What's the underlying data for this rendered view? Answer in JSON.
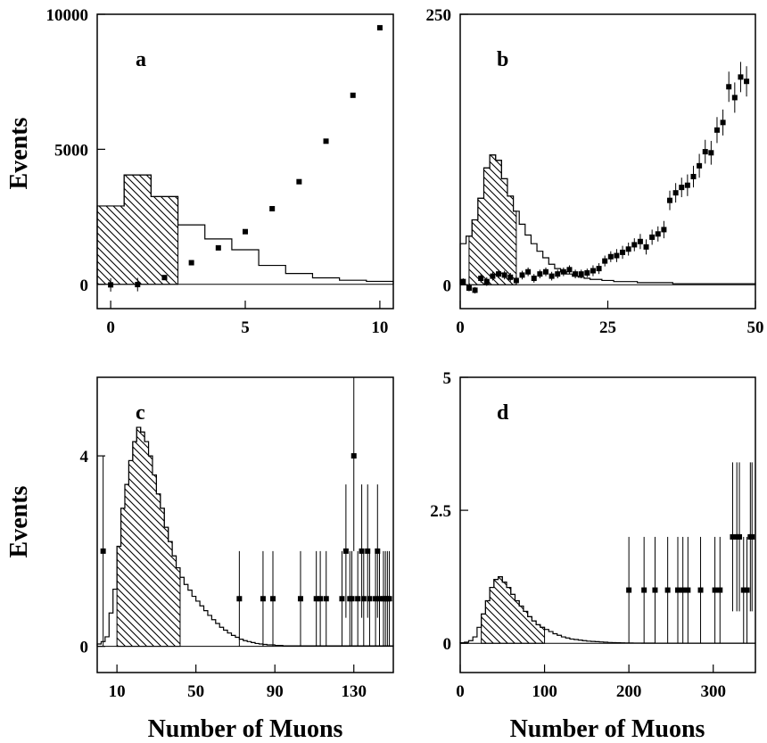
{
  "figure": {
    "ylabel_top": "Events",
    "ylabel_bottom": "Events",
    "xlabel_left": "Number of Muons",
    "xlabel_right": "Number of Muons"
  },
  "chart_data": [
    {
      "panel": "a",
      "type": "histogram",
      "xlim": [
        -0.5,
        10.5
      ],
      "ylim": [
        -900,
        10000
      ],
      "xticks": [
        0,
        5,
        10
      ],
      "xtick_labels": [
        "0",
        "5",
        "10"
      ],
      "yticks": [
        0,
        5000,
        10000
      ],
      "ytick_labels": [
        "0",
        "5000",
        "10000"
      ],
      "hist_edges": [
        -0.5,
        0.5,
        1.5,
        2.5,
        3.5,
        4.5,
        5.5,
        6.5,
        7.5,
        8.5,
        9.5,
        10.5
      ],
      "hist_values": [
        2900,
        4050,
        3250,
        2200,
        1680,
        1280,
        700,
        400,
        240,
        150,
        110
      ],
      "shaded_range": [
        -0.5,
        2.5
      ],
      "points_x": [
        0,
        1,
        2,
        3,
        4,
        5,
        6,
        7,
        8,
        9,
        10
      ],
      "points_y": [
        -20,
        -10,
        250,
        800,
        1350,
        1950,
        2800,
        3800,
        5300,
        7000,
        9500
      ],
      "points_err": [
        250,
        250,
        60,
        0,
        0,
        0,
        0,
        0,
        0,
        0,
        0
      ]
    },
    {
      "panel": "b",
      "type": "histogram",
      "xlim": [
        0,
        50
      ],
      "ylim": [
        -22,
        250
      ],
      "xticks": [
        0,
        25,
        50
      ],
      "xtick_labels": [
        "0",
        "25",
        "50"
      ],
      "yticks": [
        0,
        250
      ],
      "ytick_labels": [
        "0",
        "250"
      ],
      "hist_edges": [
        0,
        1,
        2,
        3,
        4,
        5,
        6,
        7,
        8,
        9,
        10,
        11,
        12,
        13,
        14,
        15,
        16,
        17,
        18,
        19,
        20,
        21,
        22,
        23,
        24,
        25,
        26,
        27,
        28,
        29,
        30,
        31,
        32,
        33,
        34,
        35,
        36,
        37,
        38,
        39,
        40,
        41,
        42,
        43,
        44,
        45,
        46,
        47,
        48,
        49,
        50
      ],
      "hist_values": [
        38,
        45,
        60,
        80,
        108,
        120,
        115,
        98,
        82,
        68,
        56,
        46,
        38,
        31,
        25,
        19,
        15,
        12,
        10,
        8,
        7,
        6,
        5,
        5,
        4,
        4,
        3,
        3,
        3,
        3,
        2,
        2,
        2,
        2,
        2,
        2,
        1,
        1,
        1,
        1,
        1,
        1,
        1,
        1,
        1,
        1,
        1,
        1,
        1,
        1
      ],
      "shaded_range": [
        1.5,
        9.5
      ],
      "points_x": [
        0.5,
        1.5,
        2.5,
        3.5,
        4.5,
        5.5,
        6.5,
        7.5,
        8.5,
        9.5,
        10.5,
        11.5,
        12.5,
        13.5,
        14.5,
        15.5,
        16.5,
        17.5,
        18.5,
        19.5,
        20.5,
        21.5,
        22.5,
        23.5,
        24.5,
        25.5,
        26.5,
        27.5,
        28.5,
        29.5,
        30.5,
        31.5,
        32.5,
        33.5,
        34.5,
        35.5,
        36.5,
        37.5,
        38.5,
        39.5,
        40.5,
        41.5,
        42.5,
        43.5,
        44.5,
        45.5,
        46.5,
        47.5,
        48.5
      ],
      "points_y": [
        3,
        -3,
        -5,
        6,
        3,
        8,
        10,
        9,
        7,
        4,
        9,
        12,
        6,
        10,
        12,
        8,
        10,
        12,
        14,
        10,
        10,
        11,
        13,
        15,
        22,
        26,
        27,
        30,
        33,
        37,
        40,
        35,
        44,
        47,
        51,
        78,
        85,
        90,
        92,
        100,
        110,
        123,
        122,
        143,
        150,
        183,
        173,
        192,
        188
      ],
      "points_err": [
        3,
        3,
        3,
        4,
        4,
        4,
        4,
        4,
        4,
        4,
        4,
        4,
        4,
        4,
        4,
        4,
        4,
        4,
        4,
        4,
        4,
        4,
        5,
        5,
        5,
        5,
        6,
        6,
        6,
        6,
        7,
        7,
        7,
        7,
        8,
        9,
        9,
        9,
        10,
        10,
        11,
        11,
        11,
        12,
        12,
        14,
        14,
        14,
        14
      ]
    },
    {
      "panel": "c",
      "type": "histogram",
      "xlim": [
        0,
        150
      ],
      "ylim": [
        -0.55,
        5.65
      ],
      "xticks": [
        10,
        50,
        90,
        130
      ],
      "xtick_labels": [
        "10",
        "50",
        "90",
        "130"
      ],
      "yticks": [
        0,
        4
      ],
      "ytick_labels": [
        "0",
        "4"
      ],
      "hist_edges": [
        0,
        2,
        4,
        6,
        8,
        10,
        12,
        14,
        16,
        18,
        20,
        22,
        24,
        26,
        28,
        30,
        32,
        34,
        36,
        38,
        40,
        42,
        44,
        46,
        48,
        50,
        52,
        54,
        56,
        58,
        60,
        62,
        64,
        66,
        68,
        70,
        72,
        74,
        76,
        78,
        80,
        82,
        84,
        86,
        88,
        90,
        92,
        94,
        96,
        98,
        100,
        102,
        104,
        106,
        108,
        110,
        112,
        114,
        116,
        118,
        120,
        122,
        124,
        126,
        128,
        130,
        132,
        134,
        136,
        138,
        140,
        142,
        144,
        146,
        148,
        150
      ],
      "hist_values": [
        0.05,
        0.1,
        0.2,
        0.7,
        1.2,
        2.1,
        2.9,
        3.4,
        3.9,
        4.3,
        4.6,
        4.5,
        4.3,
        4.0,
        3.6,
        3.2,
        2.9,
        2.5,
        2.2,
        1.9,
        1.65,
        1.45,
        1.3,
        1.18,
        1.05,
        0.95,
        0.85,
        0.75,
        0.65,
        0.56,
        0.48,
        0.4,
        0.34,
        0.28,
        0.23,
        0.19,
        0.15,
        0.12,
        0.1,
        0.08,
        0.06,
        0.05,
        0.04,
        0.03,
        0.03,
        0.02,
        0.02,
        0.01,
        0.01,
        0.01,
        0.01,
        0.01,
        0.01,
        0.01,
        0.01,
        0.01,
        0.01,
        0.01,
        0.01,
        0.01,
        0.01,
        0.01,
        0.01,
        0.01,
        0.01,
        0.01,
        0.01,
        0.01,
        0.01,
        0.01,
        0.01,
        0.01,
        0.01,
        0.01,
        0.01
      ],
      "shaded_range": [
        10,
        42
      ],
      "points_x": [
        3,
        72,
        84,
        89,
        103,
        111,
        113,
        116,
        124,
        126,
        128,
        129,
        130,
        132,
        134,
        135,
        137,
        138,
        141,
        142,
        143,
        145,
        146,
        147,
        148
      ],
      "points_y": [
        2,
        1,
        1,
        1,
        1,
        1,
        1,
        1,
        1,
        2,
        1,
        1,
        4,
        1,
        2,
        1,
        2,
        1,
        1,
        2,
        1,
        1,
        1,
        1,
        1
      ],
      "points_err": [
        2,
        1,
        1,
        1,
        1,
        1,
        1,
        1,
        1,
        1.4,
        1,
        1,
        2,
        1,
        1.4,
        1,
        1.4,
        1,
        1,
        1.4,
        1,
        1,
        1,
        1,
        1
      ]
    },
    {
      "panel": "d",
      "type": "histogram",
      "xlim": [
        0,
        350
      ],
      "ylim": [
        -0.55,
        5
      ],
      "xticks": [
        0,
        100,
        200,
        300
      ],
      "xtick_labels": [
        "0",
        "100",
        "200",
        "300"
      ],
      "yticks": [
        0,
        2.5,
        5
      ],
      "ytick_labels": [
        "0",
        "2.5",
        "5"
      ],
      "hist_edges": [
        0,
        5,
        10,
        15,
        20,
        25,
        30,
        35,
        40,
        45,
        50,
        55,
        60,
        65,
        70,
        75,
        80,
        85,
        90,
        95,
        100,
        105,
        110,
        115,
        120,
        125,
        130,
        135,
        140,
        145,
        150,
        155,
        160,
        165,
        170,
        175,
        180,
        185,
        190,
        195,
        200,
        205,
        210,
        215,
        220,
        225,
        230,
        235,
        240,
        245,
        250,
        255,
        260,
        265,
        270,
        275,
        280,
        285,
        290,
        295,
        300,
        305,
        310,
        315,
        320,
        325,
        330,
        335,
        340,
        345,
        350
      ],
      "hist_values": [
        0.01,
        0.02,
        0.05,
        0.12,
        0.3,
        0.55,
        0.8,
        1.05,
        1.2,
        1.25,
        1.15,
        1.05,
        0.92,
        0.8,
        0.7,
        0.6,
        0.5,
        0.42,
        0.35,
        0.3,
        0.26,
        0.22,
        0.18,
        0.15,
        0.12,
        0.1,
        0.08,
        0.07,
        0.06,
        0.05,
        0.04,
        0.035,
        0.03,
        0.025,
        0.02,
        0.015,
        0.012,
        0.01,
        0.008,
        0.006,
        0.005,
        0.004,
        0.004,
        0.003,
        0.003,
        0.003,
        0.002,
        0.002,
        0.002,
        0.002,
        0.002,
        0.002,
        0.002,
        0.002,
        0.002,
        0.002,
        0.002,
        0.002,
        0.002,
        0.002,
        0.002,
        0.002,
        0.002,
        0.002,
        0.002,
        0.002,
        0.002,
        0.002,
        0.002,
        0.002
      ],
      "shaded_range": [
        25,
        100
      ],
      "points_x": [
        200,
        218,
        231,
        246,
        258,
        264,
        270,
        285,
        302,
        308,
        323,
        328,
        331,
        336,
        340,
        344,
        346
      ],
      "points_y": [
        1,
        1,
        1,
        1,
        1,
        1,
        1,
        1,
        1,
        1,
        2,
        2,
        2,
        1,
        1,
        2,
        2
      ],
      "points_err": [
        1,
        1,
        1,
        1,
        1,
        1,
        1,
        1,
        1,
        1,
        1.4,
        1.4,
        1.4,
        1,
        1,
        1.4,
        1.4
      ]
    }
  ]
}
